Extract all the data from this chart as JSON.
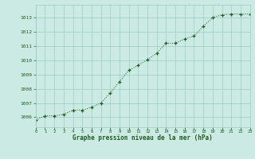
{
  "x": [
    0,
    1,
    2,
    3,
    4,
    5,
    6,
    7,
    8,
    9,
    10,
    11,
    12,
    13,
    14,
    15,
    16,
    17,
    18,
    19,
    20,
    21,
    22,
    23
  ],
  "y": [
    1005.8,
    1006.1,
    1006.1,
    1006.2,
    1006.5,
    1006.5,
    1006.7,
    1007.0,
    1007.7,
    1008.5,
    1009.3,
    1009.65,
    1010.05,
    1010.5,
    1011.2,
    1011.2,
    1011.5,
    1011.7,
    1012.4,
    1013.0,
    1013.2,
    1013.25,
    1013.25,
    1013.25
  ],
  "line_color": "#1e5c1e",
  "marker_color": "#1e5c1e",
  "bg_color": "#cceae4",
  "grid_color": "#99ccc4",
  "xlabel": "Graphe pression niveau de la mer (hPa)",
  "xlabel_color": "#1e5c1e",
  "ylabel_ticks": [
    1006,
    1007,
    1008,
    1009,
    1010,
    1011,
    1012,
    1013
  ],
  "ylim": [
    1005.3,
    1013.9
  ],
  "xlim": [
    0,
    23
  ],
  "xticks": [
    0,
    1,
    2,
    3,
    4,
    5,
    6,
    7,
    8,
    9,
    10,
    11,
    12,
    13,
    14,
    15,
    16,
    17,
    18,
    19,
    20,
    21,
    22,
    23
  ]
}
